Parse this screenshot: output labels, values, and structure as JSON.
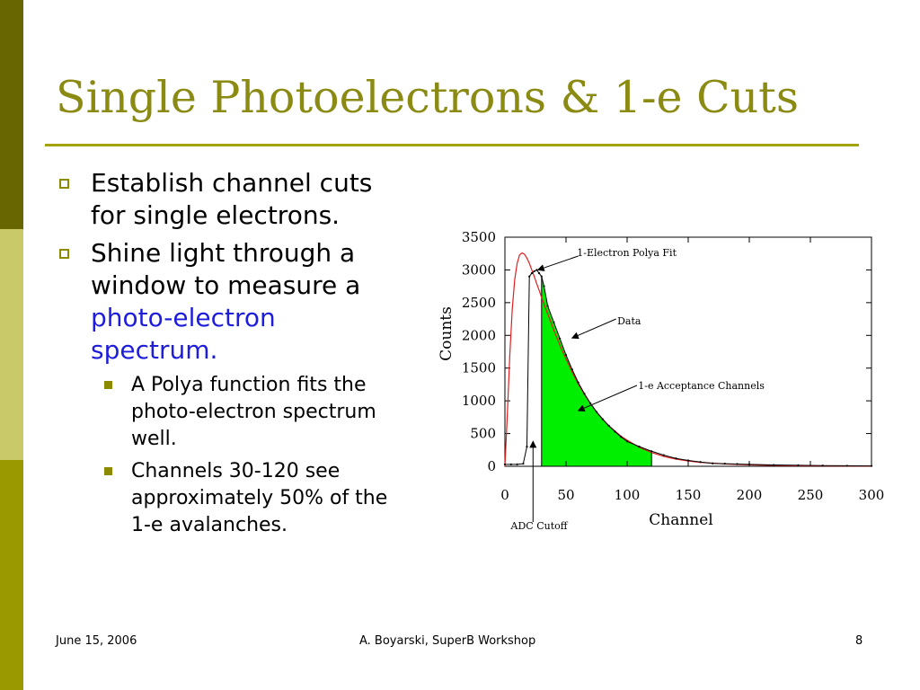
{
  "slide": {
    "title": "Single Photoelectrons & 1-e Cuts",
    "bullets": [
      {
        "text": "Establish channel cuts for single electrons."
      },
      {
        "text_before": "Shine light through a window to measure a ",
        "highlight": "photo-electron spectrum.",
        "text_after": ""
      }
    ],
    "sub_bullets": [
      {
        "text": "A Polya function fits the photo-electron spectrum well."
      },
      {
        "text": "Channels 30-120 see approximately 50% of the 1-e avalanches."
      }
    ],
    "footer": {
      "date": "June 15, 2006",
      "author": "A. Boyarski,  SuperB Workshop",
      "page": "8"
    },
    "colors": {
      "title": "#8b8b14",
      "accent": "#8b8b00",
      "highlight": "#1d1ddb",
      "sidebar_top": "#676600",
      "sidebar_mid": "#c9c96a",
      "sidebar_bottom": "#9a9a00"
    }
  },
  "chart_data": {
    "type": "area",
    "title": "",
    "xlabel": "Channel",
    "ylabel": "Counts",
    "xlim": [
      0,
      300
    ],
    "ylim": [
      0,
      3500
    ],
    "x_ticks": [
      "0",
      "50",
      "100",
      "150",
      "200",
      "250",
      "300"
    ],
    "y_ticks": [
      "0",
      "500",
      "1000",
      "1500",
      "2000",
      "2500",
      "3000",
      "3500"
    ],
    "grid": false,
    "series": [
      {
        "name": "1-Electron Polya Fit",
        "color": "#e02020",
        "x": [
          0,
          2,
          4,
          6,
          8,
          10,
          12,
          14,
          16,
          18,
          20,
          22,
          24,
          26,
          28,
          30,
          35,
          40,
          45,
          50,
          55,
          60,
          65,
          70,
          75,
          80,
          85,
          90,
          95,
          100,
          110,
          120,
          130,
          140,
          150,
          160,
          180,
          200,
          220,
          240,
          260,
          280,
          300
        ],
        "y": [
          0,
          800,
          1700,
          2400,
          2850,
          3100,
          3230,
          3260,
          3240,
          3180,
          3100,
          3000,
          2900,
          2790,
          2690,
          2580,
          2330,
          2080,
          1850,
          1640,
          1440,
          1260,
          1100,
          960,
          830,
          720,
          620,
          540,
          460,
          400,
          290,
          210,
          150,
          110,
          80,
          60,
          35,
          22,
          14,
          9,
          6,
          4,
          3
        ]
      },
      {
        "name": "Data",
        "color": "#000000",
        "x": [
          0,
          5,
          10,
          15,
          18,
          20,
          22,
          24,
          26,
          28,
          30,
          32,
          35,
          40,
          45,
          50,
          55,
          60,
          65,
          70,
          75,
          80,
          85,
          90,
          95,
          100,
          110,
          120,
          130,
          140,
          150,
          160,
          170,
          180,
          190,
          200,
          220,
          240,
          260,
          280,
          300
        ],
        "y": [
          30,
          30,
          30,
          40,
          300,
          2900,
          2950,
          2980,
          3000,
          2950,
          2900,
          2750,
          2450,
          2200,
          1950,
          1700,
          1480,
          1280,
          1110,
          960,
          830,
          720,
          620,
          530,
          450,
          380,
          300,
          230,
          170,
          120,
          90,
          65,
          45,
          40,
          35,
          30,
          20,
          15,
          10,
          8,
          5
        ]
      }
    ],
    "shaded_region": {
      "name": "1-e Acceptance Channels",
      "x_range": [
        30,
        120
      ],
      "color": "#00ee00"
    },
    "annotations": [
      {
        "text": "1-Electron Polya Fit",
        "points_to": [
          27,
          3000
        ]
      },
      {
        "text": "Data",
        "points_to": [
          55,
          1960
        ]
      },
      {
        "text": "1-e Acceptance Channels",
        "points_to": [
          60,
          850
        ]
      },
      {
        "text": "ADC Cutoff",
        "points_to": [
          23,
          380
        ]
      }
    ]
  }
}
